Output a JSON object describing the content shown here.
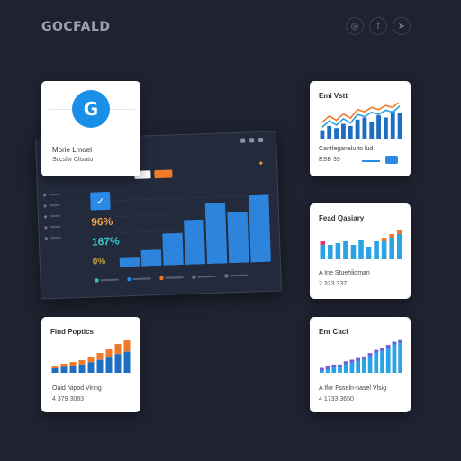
{
  "brand": {
    "logo": "GOCFALD"
  },
  "social": [
    {
      "name": "instagram-icon",
      "glyph": "◎"
    },
    {
      "name": "facebook-icon",
      "glyph": "f"
    },
    {
      "name": "twitter-icon",
      "glyph": "➤"
    }
  ],
  "profile_card": {
    "avatar_letter": "G",
    "name": "Morie Lmoel",
    "subtitle": "Sccslw Clisatu"
  },
  "dashboard": {
    "stat1": "96%",
    "stat2": "167%",
    "stat3": "0%",
    "twitter_glyph": "✓",
    "colors": {
      "bar": "#2d84dc",
      "orange": "#f07a2a",
      "accent": "#2a8ae6"
    },
    "chart_data": {
      "type": "bar",
      "values": [
        3,
        5,
        10,
        14,
        19,
        16,
        21
      ]
    }
  },
  "card_top_right": {
    "title": "Emi Vstt",
    "caption": "Cantleganalu to lud",
    "value": "ESB 39",
    "chart_data": {
      "type": "bar",
      "series": [
        {
          "values": [
            4,
            6,
            5,
            7,
            6,
            9,
            10,
            8,
            11,
            10,
            13,
            12
          ]
        }
      ],
      "line": [
        6,
        9,
        7,
        10,
        8,
        12,
        11,
        13,
        12,
        14,
        13,
        16
      ]
    }
  },
  "card_mid_right": {
    "title": "Fead Qasiary",
    "caption": "A Ine Stuehlioman",
    "value": "2 333 337",
    "chart_data": {
      "type": "bar",
      "values": [
        10,
        8,
        9,
        10,
        8,
        11,
        7,
        10,
        12,
        14,
        16
      ]
    }
  },
  "card_bottom_left": {
    "title": "Find Poptics",
    "caption": "Oaid Nipod Vinng",
    "value": "4 379 3083",
    "chart_data": {
      "type": "bar",
      "values": [
        4,
        5,
        6,
        7,
        9,
        11,
        13,
        16,
        18
      ]
    }
  },
  "card_bottom_right": {
    "title": "Enr Cacl",
    "caption": "A Ifor Fsseln-nasel Vlsig",
    "value": "4 1733 3650",
    "chart_data": {
      "type": "bar",
      "values": [
        3,
        4,
        5,
        5,
        7,
        8,
        9,
        10,
        12,
        14,
        15,
        17,
        19,
        20
      ]
    }
  }
}
